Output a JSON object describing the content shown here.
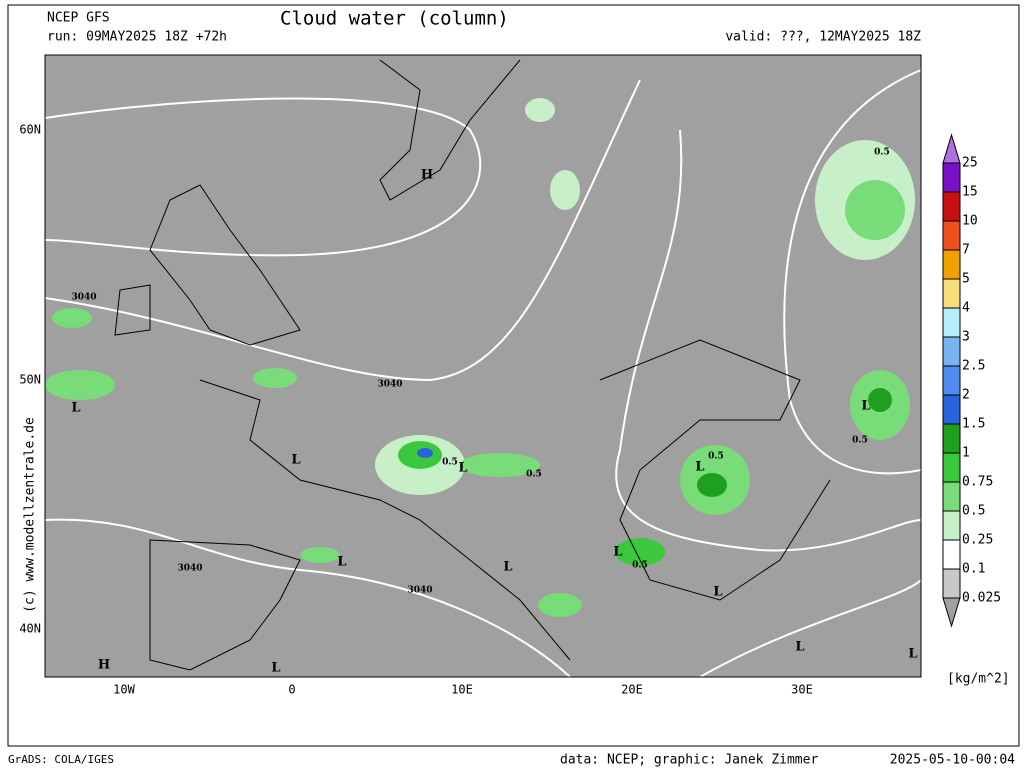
{
  "header": {
    "model": "NCEP GFS",
    "title": "Cloud water (column)",
    "run": "run: 09MAY2025 18Z +72h",
    "valid": "valid: ???, 12MAY2025 18Z"
  },
  "axes": {
    "lat_labels": [
      "60N",
      "50N",
      "40N"
    ],
    "lon_labels": [
      "10W",
      "0",
      "10E",
      "20E",
      "30E"
    ]
  },
  "colorbar": {
    "levels": [
      "0.025",
      "0.1",
      "0.25",
      "0.5",
      "0.75",
      "1",
      "1.5",
      "2",
      "2.5",
      "3",
      "4",
      "5",
      "7",
      "10",
      "15",
      "25"
    ],
    "colors": [
      "#a0a0a0",
      "#c8c8c8",
      "#ffffff",
      "#c8f0c8",
      "#78dc78",
      "#3cc83c",
      "#1ea01e",
      "#2864dc",
      "#508cf0",
      "#78b4f0",
      "#b4f0fa",
      "#f8dc78",
      "#f0a000",
      "#f05020",
      "#c81010",
      "#7a10c8",
      "#b070e0"
    ],
    "unit": "[kg/m^2]"
  },
  "side_label": "(c) www.modellzentrale.de",
  "annotations": [
    "H",
    "L",
    "L",
    "L",
    "L",
    "L",
    "L",
    "L",
    "L",
    "L",
    "L",
    "L",
    "H",
    "L",
    "3040",
    "3040",
    "3040",
    "3040",
    "0.5",
    "0.5",
    "0.5",
    "0.5",
    "0.5",
    "0.5"
  ],
  "footer": {
    "left": "GrADS: COLA/IGES",
    "center": "data: NCEP; graphic: Janek Zimmer",
    "right": "2025-05-10-00:04"
  }
}
